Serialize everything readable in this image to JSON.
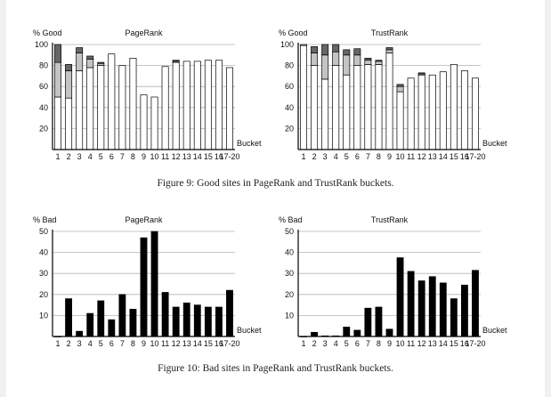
{
  "figures": [
    {
      "caption": "Figure 9: Good sites in PageRank and TrustRank buckets."
    },
    {
      "caption": "Figure 10: Bad sites in PageRank and TrustRank buckets."
    }
  ],
  "colors": {
    "white": "#ffffff",
    "light": "#c4c4c4",
    "dark": "#666666",
    "black": "#000000"
  },
  "chart_data": [
    {
      "type": "bar",
      "stacked": true,
      "title": "PageRank",
      "ylabel": "% Good",
      "xlabel": "Bucket",
      "ylim": [
        0,
        100
      ],
      "yticks": [
        20,
        40,
        60,
        80,
        100
      ],
      "grid": true,
      "categories": [
        "1",
        "2",
        "3",
        "4",
        "5",
        "6",
        "7",
        "8",
        "9",
        "10",
        "11",
        "12",
        "13",
        "14",
        "15",
        "16",
        "17-20"
      ],
      "series": [
        {
          "values": [
            50,
            49,
            75,
            78,
            80,
            91,
            80,
            87,
            52,
            50,
            79,
            83,
            84,
            84,
            85,
            85,
            78
          ]
        },
        {
          "values": [
            33,
            26,
            17,
            8,
            2,
            0,
            0,
            0,
            0,
            0,
            0,
            1,
            0,
            0,
            0,
            0,
            0
          ]
        },
        {
          "values": [
            17,
            6,
            5,
            3,
            1,
            0,
            0,
            0,
            0,
            0,
            0,
            1,
            0,
            0,
            0,
            0,
            0
          ]
        }
      ]
    },
    {
      "type": "bar",
      "stacked": true,
      "title": "TrustRank",
      "ylabel": "% Good",
      "xlabel": "Bucket",
      "ylim": [
        0,
        100
      ],
      "yticks": [
        20,
        40,
        60,
        80,
        100
      ],
      "grid": true,
      "categories": [
        "1",
        "2",
        "3",
        "4",
        "5",
        "6",
        "7",
        "8",
        "9",
        "10",
        "11",
        "12",
        "13",
        "14",
        "15",
        "16",
        "17-20"
      ],
      "series": [
        {
          "values": [
            99,
            80,
            67,
            80,
            71,
            80,
            81,
            81,
            92,
            55,
            68,
            71,
            71,
            74,
            81,
            75,
            68
          ]
        },
        {
          "values": [
            1,
            12,
            23,
            13,
            19,
            10,
            4,
            3,
            3,
            5,
            0,
            1,
            0,
            0,
            0,
            0,
            0
          ]
        },
        {
          "values": [
            0,
            6,
            10,
            7,
            5,
            6,
            2,
            1,
            2,
            2,
            0,
            1,
            0,
            0,
            0,
            0,
            0
          ]
        }
      ]
    },
    {
      "type": "bar",
      "title": "PageRank",
      "ylabel": "% Bad",
      "xlabel": "Bucket",
      "ylim": [
        0,
        50
      ],
      "yticks": [
        10,
        20,
        30,
        40,
        50
      ],
      "grid": true,
      "categories": [
        "1",
        "2",
        "3",
        "4",
        "5",
        "6",
        "7",
        "8",
        "9",
        "10",
        "11",
        "12",
        "13",
        "14",
        "15",
        "16",
        "17-20"
      ],
      "values": [
        0,
        18,
        2.5,
        11,
        17,
        8,
        20,
        13,
        47,
        50,
        21,
        14,
        16,
        15,
        14,
        14,
        22
      ]
    },
    {
      "type": "bar",
      "title": "TrustRank",
      "ylabel": "% Bad",
      "xlabel": "Bucket",
      "ylim": [
        0,
        50
      ],
      "yticks": [
        10,
        20,
        30,
        40,
        50
      ],
      "grid": true,
      "categories": [
        "1",
        "2",
        "3",
        "4",
        "5",
        "6",
        "7",
        "8",
        "9",
        "10",
        "11",
        "12",
        "13",
        "14",
        "15",
        "16",
        "17-20"
      ],
      "values": [
        0,
        2,
        0.3,
        0.3,
        4.5,
        3,
        13.5,
        14,
        3.5,
        37.5,
        31,
        26.5,
        28.5,
        25.5,
        18,
        24.5,
        31.5
      ]
    }
  ]
}
